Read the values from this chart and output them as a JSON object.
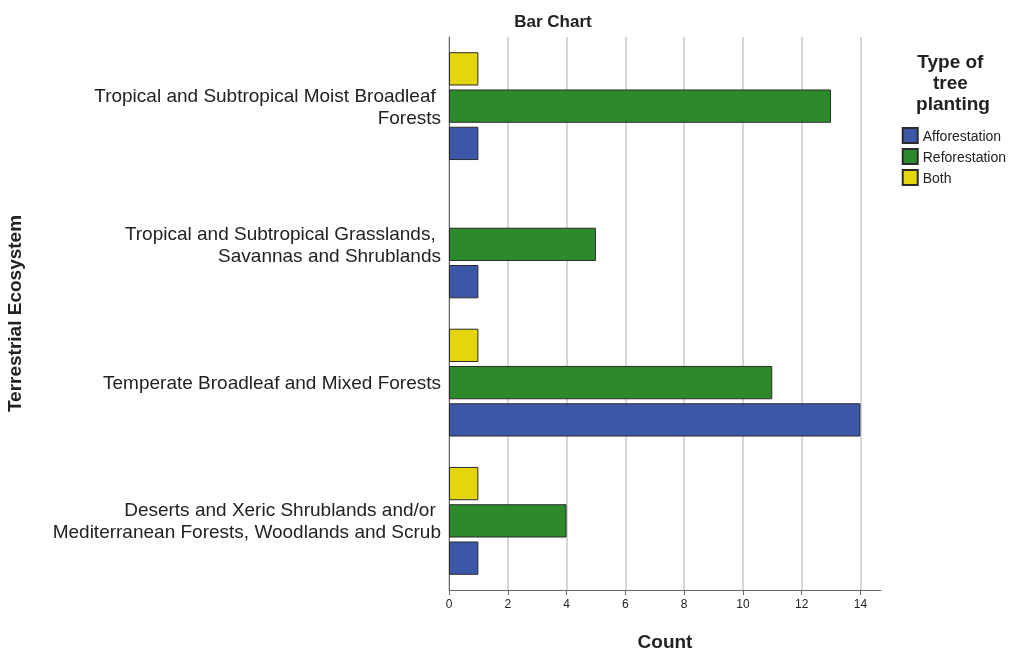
{
  "chart_data": {
    "type": "bar",
    "orientation": "horizontal",
    "title": "Bar Chart",
    "xlabel": "Count",
    "ylabel": "Terrestrial Ecosystem",
    "legend_title": "Type of tree planting",
    "categories": [
      "Tropical and Subtropical Moist Broadleaf Forests",
      "Tropical and Subtropical Grasslands, Savannas and Shrublands",
      "Temperate Broadleaf and Mixed Forests",
      "Deserts and Xeric Shrublands and/or Mediterranean Forests, Woodlands and Scrub"
    ],
    "series": [
      {
        "name": "Afforestation",
        "color": "#3b58a8",
        "values": [
          1,
          1,
          14,
          1
        ]
      },
      {
        "name": "Reforestation",
        "color": "#2c8a2c",
        "values": [
          13,
          5,
          11,
          4
        ]
      },
      {
        "name": "Both",
        "color": "#e4d50c",
        "values": [
          1,
          null,
          1,
          1
        ]
      }
    ],
    "xlim": [
      0,
      14.7
    ],
    "xticks": [
      0,
      2,
      4,
      6,
      8,
      10,
      12,
      14
    ],
    "grid": "x",
    "legend": "top right"
  }
}
